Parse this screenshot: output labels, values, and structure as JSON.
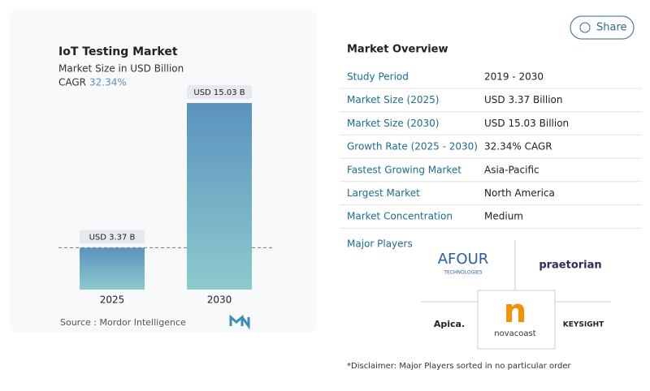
{
  "chart_data": {
    "type": "bar",
    "title": "IoT Testing Market",
    "subtitle": "Market Size in USD Billion",
    "cagr_label": "CAGR",
    "cagr": "32.34%",
    "categories": [
      "2025",
      "2030"
    ],
    "values": [
      3.37,
      15.03
    ],
    "value_labels": [
      "USD 3.37 B",
      "USD 15.03 B"
    ],
    "source": "Source :  Mordor Intelligence"
  },
  "share": "Share",
  "overview": {
    "title": "Market Overview",
    "rows": [
      [
        "Study Period",
        "2019 - 2030"
      ],
      [
        "Market Size (2025)",
        "USD 3.37 Billion"
      ],
      [
        "Market Size (2030)",
        "USD 15.03 Billion"
      ],
      [
        "Growth Rate (2025 - 2030)",
        "32.34% CAGR"
      ],
      [
        "Fastest Growing Market",
        "Asia-Pacific"
      ],
      [
        "Largest Market",
        "North America"
      ],
      [
        "Market Concentration",
        "Medium"
      ]
    ],
    "players_title": "Major Players",
    "players": [
      "AFOUR",
      "TECHNOLOGIES",
      "praetorian",
      "Apica.",
      "n",
      "novacoast",
      "KEYSIGHT"
    ],
    "disclaimer": "*Disclaimer: Major Players sorted in no particular order"
  }
}
